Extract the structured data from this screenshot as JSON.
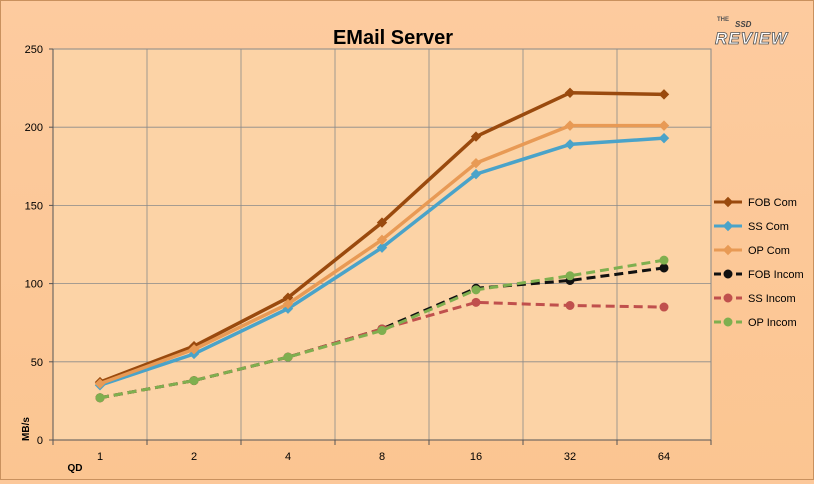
{
  "logo": {
    "small_text": "THE",
    "brand_text": "REVIEW",
    "mid_text": "SSD"
  },
  "chart_data": {
    "type": "line",
    "title": "EMail Server",
    "xlabel": "QD",
    "ylabel": "MB/s",
    "categories": [
      "1",
      "2",
      "4",
      "8",
      "16",
      "32",
      "64"
    ],
    "ylim": [
      0,
      250
    ],
    "yticks": [
      0,
      50,
      100,
      150,
      200,
      250
    ],
    "grid": true,
    "legend_position": "right",
    "series": [
      {
        "name": "FOB Com",
        "values": [
          37,
          60,
          91,
          139,
          194,
          222,
          221
        ],
        "color": "#9a4a0e",
        "dash": false,
        "marker": "diamond"
      },
      {
        "name": "SS Com",
        "values": [
          35,
          55,
          84,
          123,
          170,
          189,
          193
        ],
        "color": "#4aa3c9",
        "dash": false,
        "marker": "diamond"
      },
      {
        "name": "OP Com",
        "values": [
          36,
          58,
          87,
          128,
          177,
          201,
          201
        ],
        "color": "#e89a55",
        "dash": false,
        "marker": "diamond"
      },
      {
        "name": "FOB Incom",
        "values": [
          27,
          38,
          53,
          71,
          97,
          102,
          110
        ],
        "color": "#111111",
        "dash": true,
        "marker": "circle"
      },
      {
        "name": "SS Incom",
        "values": [
          27,
          38,
          53,
          71,
          88,
          86,
          85
        ],
        "color": "#c0504d",
        "dash": true,
        "marker": "circle"
      },
      {
        "name": "OP Incom",
        "values": [
          27,
          38,
          53,
          70,
          96,
          105,
          115
        ],
        "color": "#7faf4f",
        "dash": true,
        "marker": "circle"
      }
    ]
  }
}
